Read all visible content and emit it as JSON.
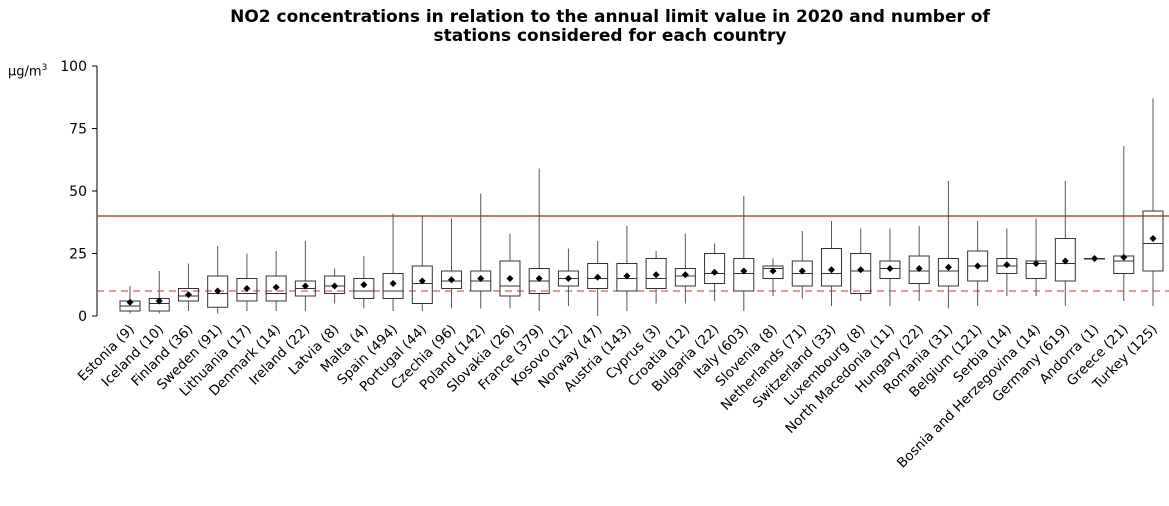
{
  "title_line1": "NO2 concentrations in relation to the annual limit value in 2020 and number of",
  "title_line2": "stations considered for each country",
  "unit_label": "µg/m",
  "unit_sup": "3",
  "colors": {
    "box": "#333333",
    "whisker": "#555555",
    "mean": "#000000",
    "limit_line": "#b22222",
    "guide_line": "#c0392b"
  },
  "chart_data": {
    "type": "box",
    "title": "NO2 concentrations in relation to the annual limit value in 2020 and number of stations considered for each country",
    "ylabel": "µg/m3",
    "ylim": [
      0,
      100
    ],
    "yticks": [
      0,
      25,
      50,
      75,
      100
    ],
    "limit_value": 40,
    "dashed_reference": 10,
    "categories": [
      "Estonia (9)",
      "Iceland (10)",
      "Finland (36)",
      "Sweden (91)",
      "Lithuania (17)",
      "Denmark (14)",
      "Ireland (22)",
      "Latvia (8)",
      "Malta (4)",
      "Spain (494)",
      "Portugal (44)",
      "Czechia (96)",
      "Poland (142)",
      "Slovakia (26)",
      "France (379)",
      "Kosovo (12)",
      "Norway (47)",
      "Austria (143)",
      "Cyprus (3)",
      "Croatia (12)",
      "Bulgaria (22)",
      "Italy (603)",
      "Slovenia (8)",
      "Netherlands (71)",
      "Switzerland (33)",
      "Luxembourg (8)",
      "North Macedonia (11)",
      "Hungary (22)",
      "Romania (31)",
      "Belgium (121)",
      "Serbia (14)",
      "Bosnia and Herzegovina (14)",
      "Germany (619)",
      "Andorra (1)",
      "Greece (21)",
      "Turkey (125)"
    ],
    "series": [
      {
        "min": 1,
        "q1": 2,
        "median": 4,
        "q3": 6,
        "max": 12,
        "mean": 5.5
      },
      {
        "min": 1,
        "q1": 2,
        "median": 5,
        "q3": 7,
        "max": 18,
        "mean": 6
      },
      {
        "min": 2,
        "q1": 6,
        "median": 8,
        "q3": 11,
        "max": 21,
        "mean": 8.5
      },
      {
        "min": 1,
        "q1": 3.5,
        "median": 9,
        "q3": 16,
        "max": 28,
        "mean": 10
      },
      {
        "min": 2,
        "q1": 6,
        "median": 9,
        "q3": 15,
        "max": 25,
        "mean": 11
      },
      {
        "min": 2,
        "q1": 6,
        "median": 9,
        "q3": 16,
        "max": 26,
        "mean": 11.5
      },
      {
        "min": 2,
        "q1": 8,
        "median": 11,
        "q3": 14,
        "max": 30,
        "mean": 12
      },
      {
        "min": 5,
        "q1": 9,
        "median": 12,
        "q3": 16,
        "max": 19,
        "mean": 12
      },
      {
        "min": 3,
        "q1": 7,
        "median": 10,
        "q3": 15,
        "max": 24,
        "mean": 12.5
      },
      {
        "min": 2,
        "q1": 7,
        "median": 10,
        "q3": 17,
        "max": 41,
        "mean": 13
      },
      {
        "min": 2,
        "q1": 5,
        "median": 13,
        "q3": 20,
        "max": 40,
        "mean": 14
      },
      {
        "min": 3,
        "q1": 11,
        "median": 14,
        "q3": 18,
        "max": 39,
        "mean": 14.5
      },
      {
        "min": 3,
        "q1": 10,
        "median": 14,
        "q3": 18,
        "max": 49,
        "mean": 15
      },
      {
        "min": 3,
        "q1": 8,
        "median": 12,
        "q3": 22,
        "max": 33,
        "mean": 15
      },
      {
        "min": 2,
        "q1": 9,
        "median": 14,
        "q3": 19,
        "max": 59,
        "mean": 15
      },
      {
        "min": 4,
        "q1": 12,
        "median": 15,
        "q3": 18,
        "max": 27,
        "mean": 15
      },
      {
        "min": 0,
        "q1": 11,
        "median": 15,
        "q3": 21,
        "max": 30,
        "mean": 15.5
      },
      {
        "min": 2,
        "q1": 10,
        "median": 15,
        "q3": 21,
        "max": 36,
        "mean": 16
      },
      {
        "min": 5,
        "q1": 11,
        "median": 15,
        "q3": 23,
        "max": 26,
        "mean": 16.5
      },
      {
        "min": 5,
        "q1": 12,
        "median": 16,
        "q3": 19,
        "max": 33,
        "mean": 16.5
      },
      {
        "min": 6,
        "q1": 13,
        "median": 17,
        "q3": 25,
        "max": 29,
        "mean": 17.5
      },
      {
        "min": 2,
        "q1": 10,
        "median": 17,
        "q3": 23,
        "max": 48,
        "mean": 18
      },
      {
        "min": 8,
        "q1": 15,
        "median": 19,
        "q3": 20,
        "max": 23,
        "mean": 18
      },
      {
        "min": 7,
        "q1": 12,
        "median": 17,
        "q3": 22,
        "max": 34,
        "mean": 18
      },
      {
        "min": 4,
        "q1": 12,
        "median": 17,
        "q3": 27,
        "max": 38,
        "mean": 18.5
      },
      {
        "min": 6,
        "q1": 9,
        "median": 18,
        "q3": 25,
        "max": 35,
        "mean": 18.5
      },
      {
        "min": 4,
        "q1": 15,
        "median": 19,
        "q3": 22,
        "max": 35,
        "mean": 19
      },
      {
        "min": 6,
        "q1": 13,
        "median": 18,
        "q3": 24,
        "max": 36,
        "mean": 19
      },
      {
        "min": 3,
        "q1": 12,
        "median": 18,
        "q3": 23,
        "max": 54,
        "mean": 19.5
      },
      {
        "min": 4,
        "q1": 14,
        "median": 20,
        "q3": 26,
        "max": 38,
        "mean": 20
      },
      {
        "min": 8,
        "q1": 17,
        "median": 20,
        "q3": 23,
        "max": 35,
        "mean": 20.5
      },
      {
        "min": 8,
        "q1": 15,
        "median": 21,
        "q3": 22,
        "max": 39,
        "mean": 21
      },
      {
        "min": 4,
        "q1": 14,
        "median": 21,
        "q3": 31,
        "max": 54,
        "mean": 22
      },
      {
        "min": 23,
        "q1": 23,
        "median": 23,
        "q3": 23,
        "max": 23,
        "mean": 23
      },
      {
        "min": 6,
        "q1": 17,
        "median": 22,
        "q3": 24,
        "max": 68,
        "mean": 23.5
      },
      {
        "min": 4,
        "q1": 18,
        "median": 29,
        "q3": 42,
        "max": 87,
        "mean": 31
      }
    ]
  }
}
